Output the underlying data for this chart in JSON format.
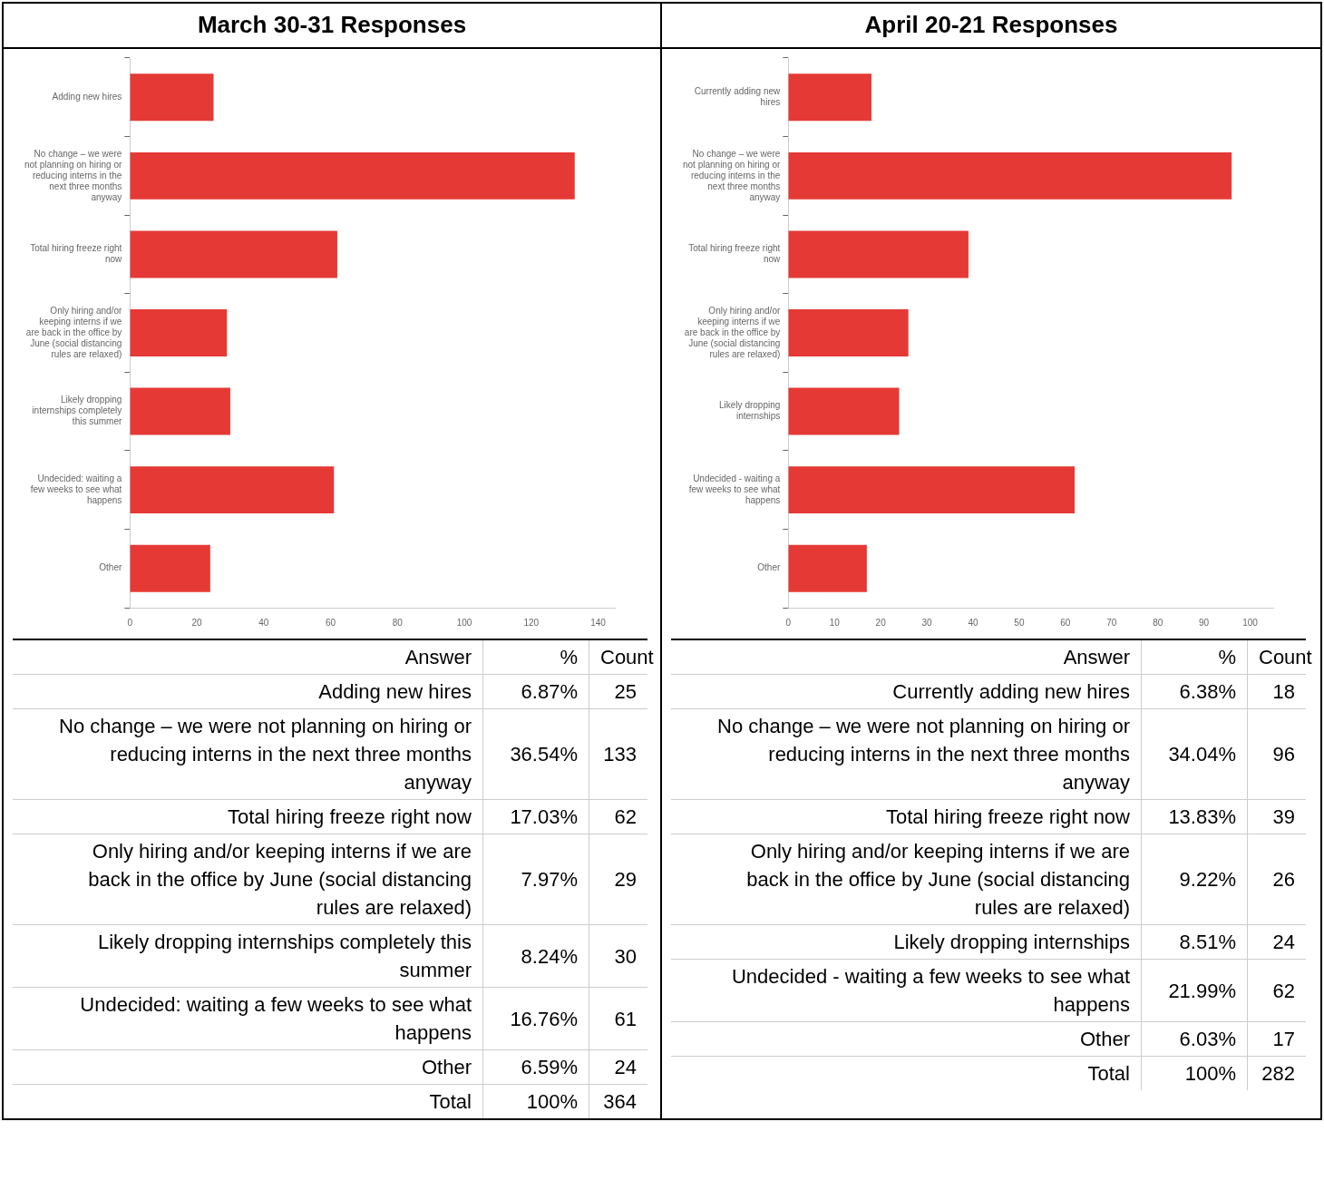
{
  "chart_data": [
    {
      "type": "bar",
      "orientation": "horizontal",
      "title": "March 30-31 Responses",
      "categories": [
        "Adding new hires",
        "No change – we were not planning on hiring or reducing interns in the next three months anyway",
        "Total hiring freeze right now",
        "Only hiring and/or keeping interns if we are back in the office by June (social distancing rules are relaxed)",
        "Likely dropping internships completely this summer",
        "Undecided: waiting a few weeks to see what happens",
        "Other"
      ],
      "values": [
        25,
        133,
        62,
        29,
        30,
        61,
        24
      ],
      "color": "#e53935",
      "xlim": [
        0,
        145
      ],
      "xticks": [
        0,
        20,
        40,
        60,
        80,
        100,
        120,
        140
      ],
      "annotations": [
        "Answer",
        "%",
        "Count",
        "Total",
        "100%",
        "364",
        "6.87%",
        "36.54%",
        "17.03%",
        "7.97%",
        "8.24%",
        "16.76%",
        "6.59%",
        "25",
        "133",
        "62",
        "29",
        "30",
        "61",
        "24"
      ]
    },
    {
      "type": "bar",
      "orientation": "horizontal",
      "title": "April 20-21 Responses",
      "categories": [
        "Currently adding new hires",
        "No change – we were not planning on hiring or reducing interns in the next three months anyway",
        "Total hiring freeze right now",
        "Only hiring and/or keeping interns if we are back in the office by June (social distancing rules are relaxed)",
        "Likely dropping internships",
        "Undecided - waiting a few weeks to see what happens",
        "Other"
      ],
      "values": [
        18,
        96,
        39,
        26,
        24,
        62,
        17
      ],
      "color": "#e53935",
      "xlim": [
        0,
        105
      ],
      "xticks": [
        0,
        10,
        20,
        30,
        40,
        50,
        60,
        70,
        80,
        90,
        100
      ],
      "annotations": [
        "Answer",
        "%",
        "Count",
        "Total",
        "100%",
        "282",
        "6.38%",
        "34.04%",
        "13.83%",
        "9.22%",
        "8.51%",
        "21.99%",
        "6.03%",
        "18",
        "96",
        "39",
        "26",
        "24",
        "62",
        "17"
      ]
    }
  ]
}
